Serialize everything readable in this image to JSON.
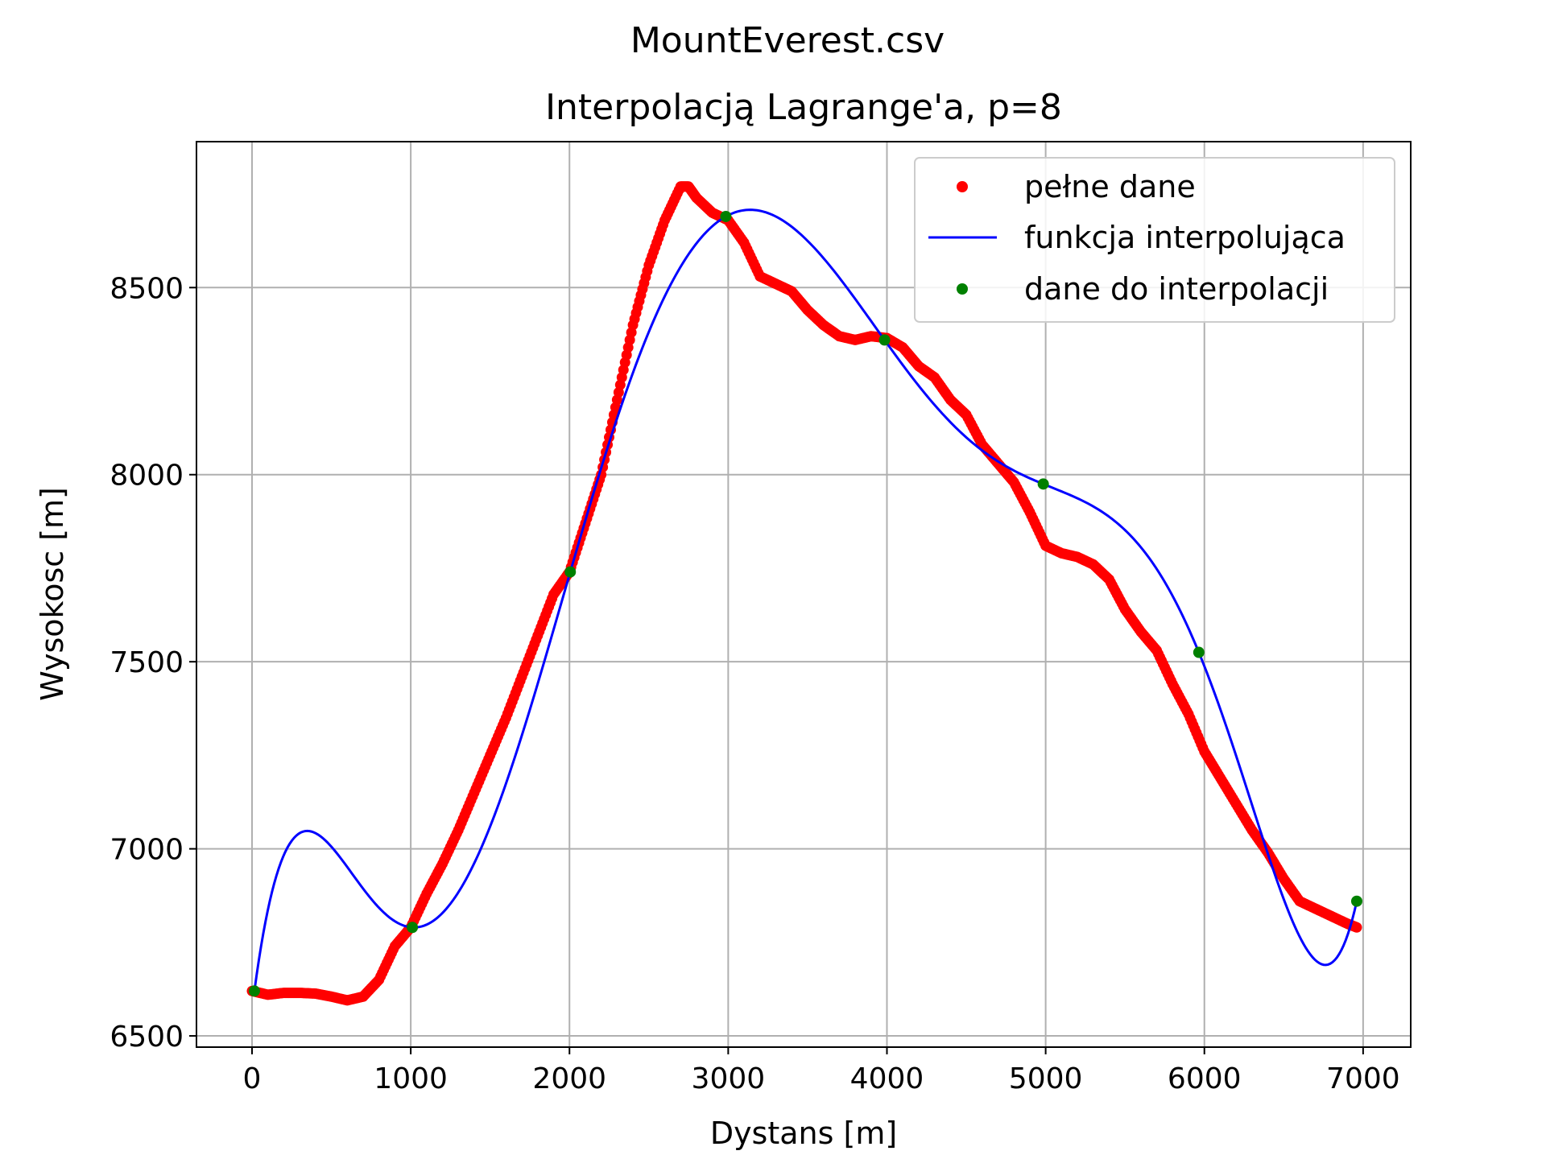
{
  "chart_data": {
    "type": "line",
    "suptitle": "MountEverest.csv",
    "title": "Interpolacją Lagrange'a, p=8",
    "xlabel": "Dystans [m]",
    "ylabel": "Wysokosc [m]",
    "xlim": [
      -350,
      7300
    ],
    "ylim": [
      6470,
      8890
    ],
    "xticks": [
      0,
      1000,
      2000,
      3000,
      4000,
      5000,
      6000,
      7000
    ],
    "yticks": [
      6500,
      7000,
      7500,
      8000,
      8500
    ],
    "xtick_labels": [
      "0",
      "1000",
      "2000",
      "3000",
      "4000",
      "5000",
      "6000",
      "7000"
    ],
    "ytick_labels": [
      "6500",
      "7000",
      "7500",
      "8000",
      "8500"
    ],
    "grid": true,
    "legend_position": "top-right",
    "legend": [
      "pełne dane",
      "funkcja interpolująca",
      "dane do interpolacji"
    ],
    "series": [
      {
        "name": "pełne dane",
        "style": "scatter",
        "color": "#ff0000",
        "x": [
          0,
          100,
          200,
          300,
          400,
          500,
          600,
          700,
          800,
          900,
          1000,
          1100,
          1200,
          1300,
          1400,
          1500,
          1600,
          1700,
          1800,
          1900,
          2000,
          2100,
          2200,
          2300,
          2400,
          2500,
          2600,
          2700,
          2750,
          2800,
          2900,
          3000,
          3100,
          3200,
          3300,
          3400,
          3500,
          3600,
          3700,
          3800,
          3900,
          4000,
          4100,
          4200,
          4300,
          4400,
          4500,
          4600,
          4700,
          4800,
          4900,
          5000,
          5100,
          5200,
          5300,
          5400,
          5500,
          5600,
          5700,
          5800,
          5900,
          6000,
          6100,
          6200,
          6300,
          6400,
          6500,
          6600,
          6700,
          6800,
          6900,
          6960
        ],
        "y": [
          6620,
          6610,
          6615,
          6615,
          6613,
          6605,
          6595,
          6605,
          6650,
          6740,
          6790,
          6880,
          6960,
          7050,
          7150,
          7250,
          7350,
          7460,
          7570,
          7680,
          7740,
          7870,
          8000,
          8200,
          8400,
          8560,
          8680,
          8770,
          8770,
          8740,
          8700,
          8680,
          8620,
          8530,
          8510,
          8490,
          8440,
          8400,
          8370,
          8360,
          8370,
          8365,
          8340,
          8290,
          8260,
          8200,
          8160,
          8080,
          8030,
          7980,
          7900,
          7810,
          7790,
          7780,
          7760,
          7720,
          7640,
          7580,
          7530,
          7440,
          7360,
          7260,
          7190,
          7120,
          7050,
          6990,
          6920,
          6860,
          6840,
          6820,
          6800,
          6790
        ]
      },
      {
        "name": "funkcja interpolująca",
        "style": "line",
        "color": "#0000ff",
        "nodes_x": [
          15,
          1010,
          2005,
          2985,
          3985,
          4985,
          5965,
          6960
        ],
        "nodes_y": [
          6620,
          6790,
          7740,
          8690,
          8360,
          7975,
          7525,
          6860
        ]
      },
      {
        "name": "dane do interpolacji",
        "style": "scatter",
        "color": "#008000",
        "x": [
          15,
          1010,
          2005,
          2985,
          3985,
          4985,
          5965,
          6960
        ],
        "y": [
          6620,
          6790,
          7740,
          8690,
          8360,
          7975,
          7525,
          6860
        ]
      }
    ]
  }
}
